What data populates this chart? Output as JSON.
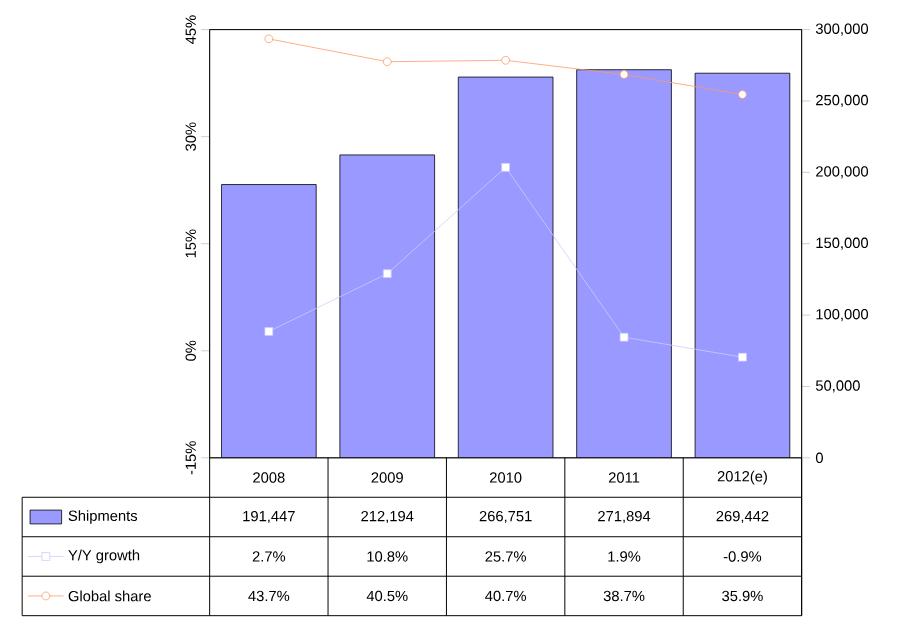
{
  "chart_data": {
    "type": "bar",
    "categories": [
      "2008",
      "2009",
      "2010",
      "2011",
      "2012(e)"
    ],
    "series": [
      {
        "name": "Shipments",
        "axis": "y2",
        "color": "#9999ff",
        "values": [
          191447,
          212194,
          266751,
          271894,
          269442
        ],
        "value_labels": [
          "191,447",
          "212,194",
          "266,751",
          "271,894",
          "269,442"
        ]
      },
      {
        "name": "Y/Y growth",
        "type": "line",
        "color": "#ccccff",
        "marker": "square",
        "values": [
          2.7,
          10.8,
          25.7,
          1.9,
          -0.9
        ],
        "value_labels": [
          "2.7%",
          "10.8%",
          "25.7%",
          "1.9%",
          "-0.9%"
        ]
      },
      {
        "name": "Global share",
        "type": "line",
        "color": "#ff9966",
        "marker": "circle",
        "values": [
          43.7,
          40.5,
          40.7,
          38.7,
          35.9
        ],
        "value_labels": [
          "43.7%",
          "40.5%",
          "40.7%",
          "38.7%",
          "35.9%"
        ]
      }
    ],
    "ylim": [
      -15,
      45
    ],
    "yticks": [
      {
        "value": -15,
        "label": "-15%"
      },
      {
        "value": 0,
        "label": "0%"
      },
      {
        "value": 15,
        "label": "15%"
      },
      {
        "value": 30,
        "label": "30%"
      },
      {
        "value": 45,
        "label": "45%"
      }
    ],
    "y2lim": [
      0,
      300000
    ],
    "y2ticks": [
      0,
      {
        "value": 50000,
        "label": "50,000"
      },
      {
        "value": 100000,
        "label": "100,000"
      },
      {
        "value": 150000,
        "label": "150,000"
      },
      {
        "value": 200000,
        "label": "200,000"
      },
      {
        "value": 250000,
        "label": "250,000"
      },
      {
        "value": 300000,
        "label": "300,000"
      }
    ],
    "legend": "bottom",
    "grid": false
  }
}
